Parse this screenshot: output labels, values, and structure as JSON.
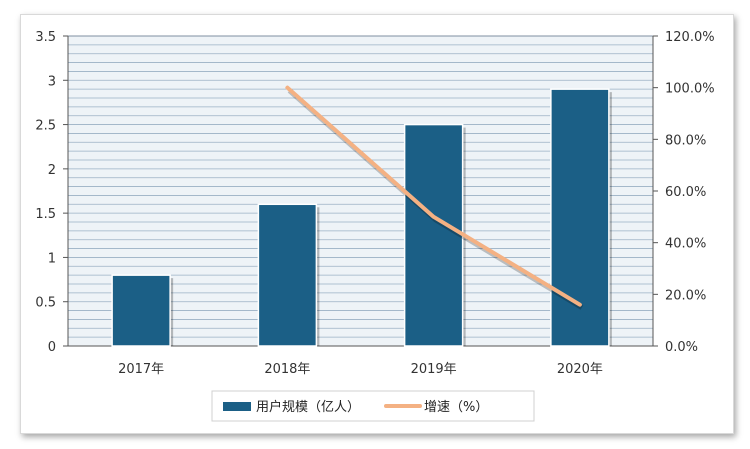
{
  "chart_data": {
    "type": "bar",
    "categories": [
      "2017年",
      "2018年",
      "2019年",
      "2020年"
    ],
    "series": [
      {
        "name": "用户规模（亿人）",
        "type": "bar",
        "axis": "left",
        "values": [
          0.8,
          1.6,
          2.5,
          2.9
        ],
        "color": "#1b5f86"
      },
      {
        "name": "增速（%）",
        "type": "line",
        "axis": "right",
        "values": [
          null,
          100.0,
          50.0,
          16.0
        ],
        "color": "#f4b183"
      }
    ],
    "y_left": {
      "min": 0,
      "max": 3.5,
      "ticks": [
        "0",
        "0.5",
        "1",
        "1.5",
        "2",
        "2.5",
        "3",
        "3.5"
      ]
    },
    "y_right": {
      "min": 0,
      "max": 120,
      "ticks": [
        "0.0%",
        "20.0%",
        "40.0%",
        "60.0%",
        "80.0%",
        "100.0%",
        "120.0%"
      ]
    },
    "grid": true,
    "legend_position": "bottom",
    "plot_background": "#eef3f7",
    "grid_color": "#9ab0c4"
  }
}
